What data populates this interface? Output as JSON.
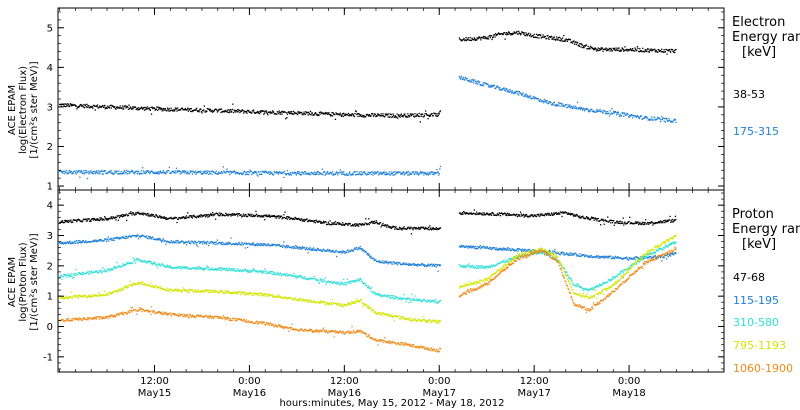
{
  "chart_data": [
    {
      "type": "scatter",
      "panel": "electron",
      "ylabel": [
        "ACE EPAM",
        "log(Electron Flux)",
        "[1/(cm²s ster MeV)]"
      ],
      "ylim": [
        0.9,
        5.5
      ],
      "yticks": [
        1,
        2,
        3,
        4,
        5
      ],
      "xlim": [
        -0.2,
        84
      ],
      "legend_title": [
        "Electron",
        "Energy ran",
        "[keV]"
      ],
      "gap": [
        48.2,
        50.5
      ],
      "series": [
        {
          "name": "38-53",
          "color": "#000000",
          "points": [
            [
              0,
              3.05
            ],
            [
              6,
              3.0
            ],
            [
              12,
              2.95
            ],
            [
              18,
              2.92
            ],
            [
              24,
              2.88
            ],
            [
              30,
              2.85
            ],
            [
              36,
              2.8
            ],
            [
              42,
              2.78
            ],
            [
              48,
              2.8
            ],
            [
              50.5,
              4.7
            ],
            [
              54,
              4.75
            ],
            [
              56,
              4.85
            ],
            [
              58,
              4.88
            ],
            [
              60,
              4.8
            ],
            [
              62,
              4.75
            ],
            [
              64,
              4.7
            ],
            [
              66,
              4.55
            ],
            [
              68,
              4.45
            ],
            [
              72,
              4.45
            ],
            [
              76,
              4.42
            ],
            [
              78,
              4.42
            ]
          ]
        },
        {
          "name": "175-315",
          "color": "#1f80d8",
          "points": [
            [
              0,
              1.35
            ],
            [
              12,
              1.35
            ],
            [
              24,
              1.33
            ],
            [
              36,
              1.32
            ],
            [
              48,
              1.32
            ],
            [
              50.5,
              3.75
            ],
            [
              54,
              3.55
            ],
            [
              58,
              3.35
            ],
            [
              62,
              3.1
            ],
            [
              66,
              2.95
            ],
            [
              70,
              2.85
            ],
            [
              74,
              2.72
            ],
            [
              78,
              2.65
            ]
          ]
        }
      ]
    },
    {
      "type": "scatter",
      "panel": "proton",
      "ylabel": [
        "ACE EPAM",
        "log(Proton Flux)",
        "[1/(cm²s ster MeV)]"
      ],
      "ylim": [
        -1.5,
        4.5
      ],
      "yticks": [
        -1,
        0,
        1,
        2,
        3,
        4
      ],
      "xlim": [
        -0.2,
        84
      ],
      "legend_title": [
        "Proton",
        "Energy ran",
        "[keV]"
      ],
      "gap": [
        48.2,
        50.5
      ],
      "series": [
        {
          "name": "47-68",
          "color": "#000000",
          "points": [
            [
              0,
              3.45
            ],
            [
              6,
              3.55
            ],
            [
              10,
              3.75
            ],
            [
              14,
              3.55
            ],
            [
              20,
              3.7
            ],
            [
              26,
              3.65
            ],
            [
              30,
              3.55
            ],
            [
              34,
              3.4
            ],
            [
              38,
              3.35
            ],
            [
              40,
              3.45
            ],
            [
              42,
              3.25
            ],
            [
              48,
              3.22
            ],
            [
              50.5,
              3.75
            ],
            [
              56,
              3.7
            ],
            [
              60,
              3.65
            ],
            [
              64,
              3.75
            ],
            [
              66,
              3.6
            ],
            [
              70,
              3.45
            ],
            [
              74,
              3.4
            ],
            [
              78,
              3.5
            ]
          ]
        },
        {
          "name": "115-195",
          "color": "#1f80d8",
          "points": [
            [
              0,
              2.75
            ],
            [
              6,
              2.85
            ],
            [
              10,
              3.0
            ],
            [
              14,
              2.8
            ],
            [
              20,
              2.75
            ],
            [
              26,
              2.7
            ],
            [
              30,
              2.6
            ],
            [
              36,
              2.45
            ],
            [
              38,
              2.6
            ],
            [
              40,
              2.15
            ],
            [
              44,
              2.05
            ],
            [
              48,
              2.0
            ],
            [
              50.5,
              2.65
            ],
            [
              56,
              2.55
            ],
            [
              60,
              2.5
            ],
            [
              64,
              2.4
            ],
            [
              68,
              2.3
            ],
            [
              72,
              2.25
            ],
            [
              76,
              2.3
            ],
            [
              78,
              2.4
            ]
          ]
        },
        {
          "name": "310-580",
          "color": "#2ee0d8",
          "points": [
            [
              0,
              1.65
            ],
            [
              6,
              1.85
            ],
            [
              10,
              2.2
            ],
            [
              14,
              1.95
            ],
            [
              20,
              1.9
            ],
            [
              26,
              1.8
            ],
            [
              30,
              1.65
            ],
            [
              36,
              1.4
            ],
            [
              38,
              1.55
            ],
            [
              40,
              1.05
            ],
            [
              44,
              0.9
            ],
            [
              48,
              0.8
            ],
            [
              50.5,
              2.0
            ],
            [
              54,
              1.95
            ],
            [
              58,
              2.3
            ],
            [
              61,
              2.45
            ],
            [
              63,
              2.2
            ],
            [
              65,
              1.4
            ],
            [
              67,
              1.2
            ],
            [
              70,
              1.6
            ],
            [
              74,
              2.3
            ],
            [
              78,
              2.8
            ]
          ]
        },
        {
          "name": "795-1193",
          "color": "#d2e600",
          "points": [
            [
              0,
              0.95
            ],
            [
              6,
              1.05
            ],
            [
              10,
              1.45
            ],
            [
              14,
              1.2
            ],
            [
              20,
              1.15
            ],
            [
              26,
              1.05
            ],
            [
              30,
              0.9
            ],
            [
              36,
              0.7
            ],
            [
              38,
              0.85
            ],
            [
              40,
              0.45
            ],
            [
              44,
              0.25
            ],
            [
              48,
              0.15
            ],
            [
              50.5,
              1.3
            ],
            [
              54,
              1.55
            ],
            [
              58,
              2.35
            ],
            [
              61,
              2.55
            ],
            [
              63,
              2.3
            ],
            [
              65,
              1.1
            ],
            [
              67,
              0.95
            ],
            [
              70,
              1.35
            ],
            [
              74,
              2.4
            ],
            [
              78,
              3.0
            ]
          ]
        },
        {
          "name": "1060-1900",
          "color": "#f08a18",
          "points": [
            [
              0,
              0.2
            ],
            [
              6,
              0.3
            ],
            [
              10,
              0.55
            ],
            [
              14,
              0.4
            ],
            [
              20,
              0.3
            ],
            [
              26,
              0.1
            ],
            [
              30,
              -0.1
            ],
            [
              36,
              -0.2
            ],
            [
              38,
              -0.15
            ],
            [
              40,
              -0.45
            ],
            [
              44,
              -0.6
            ],
            [
              48,
              -0.8
            ],
            [
              50.5,
              1.0
            ],
            [
              54,
              1.4
            ],
            [
              58,
              2.25
            ],
            [
              61,
              2.5
            ],
            [
              63,
              2.15
            ],
            [
              65,
              0.75
            ],
            [
              67,
              0.55
            ],
            [
              70,
              1.15
            ],
            [
              74,
              2.1
            ],
            [
              78,
              2.55
            ]
          ]
        }
      ]
    }
  ],
  "x_ticks": [
    {
      "hour": 12,
      "time": "12:00",
      "day": "May15"
    },
    {
      "hour": 24,
      "time": "0:00",
      "day": "May16"
    },
    {
      "hour": 36,
      "time": "12:00",
      "day": "May16"
    },
    {
      "hour": 48,
      "time": "0:00",
      "day": "May17"
    },
    {
      "hour": 60,
      "time": "12:00",
      "day": "May17"
    },
    {
      "hour": 72,
      "time": "0:00",
      "day": "May18"
    }
  ],
  "xlabel": "hours:minutes, May 15, 2012 - May 18, 2012"
}
